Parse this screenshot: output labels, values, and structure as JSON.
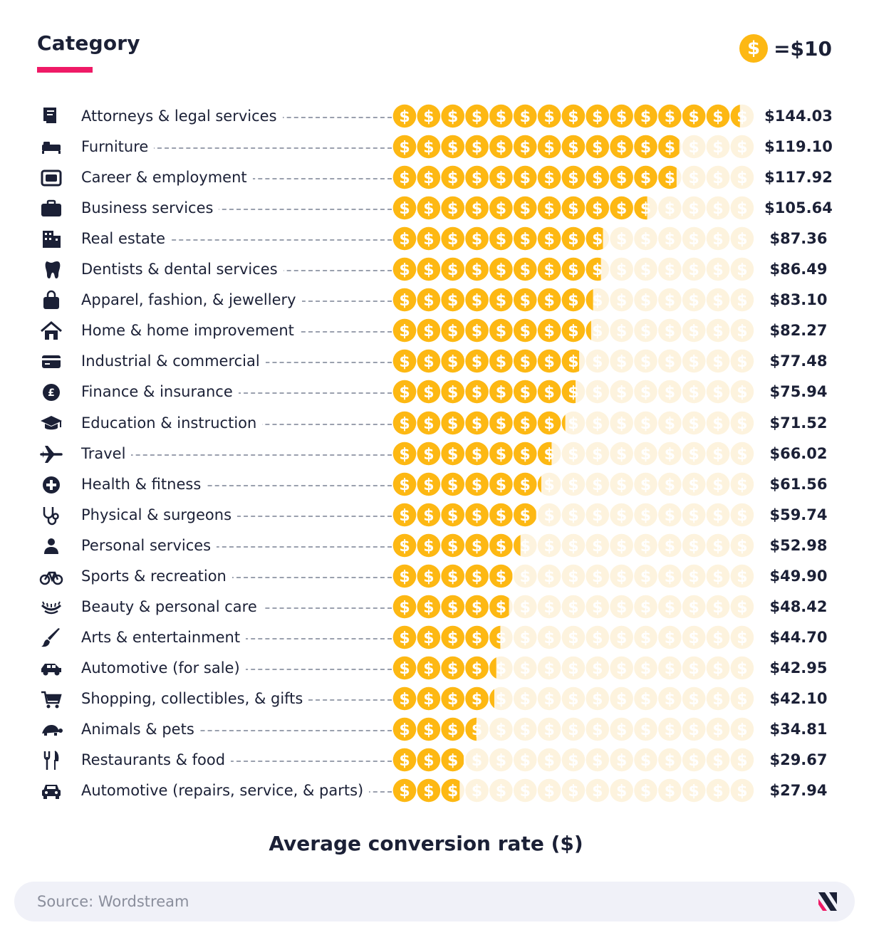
{
  "header": {
    "title": "Category"
  },
  "legend": {
    "coin_symbol": "$",
    "value_label": "=$10"
  },
  "chart_data": {
    "type": "bar",
    "encoding": "pictogram",
    "unit_value": 10,
    "coins_per_row": 15,
    "title": "",
    "ylabel": "Category",
    "xlabel": "Average conversion rate ($)",
    "coin_color": "#fdb813",
    "coin_empty_color": "#fdf3de",
    "categories": [
      {
        "label": "Attorneys & legal services",
        "value": 144.03,
        "value_label": "$144.03",
        "icon": "scroll-icon"
      },
      {
        "label": "Furniture",
        "value": 119.1,
        "value_label": "$119.10",
        "icon": "bed-icon"
      },
      {
        "label": "Career & employment",
        "value": 117.92,
        "value_label": "$117.92",
        "icon": "id-card-icon"
      },
      {
        "label": "Business services",
        "value": 105.64,
        "value_label": "$105.64",
        "icon": "briefcase-icon"
      },
      {
        "label": "Real estate",
        "value": 87.36,
        "value_label": "$87.36",
        "icon": "building-icon"
      },
      {
        "label": "Dentists & dental services",
        "value": 86.49,
        "value_label": "$86.49",
        "icon": "tooth-icon"
      },
      {
        "label": "Apparel, fashion, & jewellery",
        "value": 83.1,
        "value_label": "$83.10",
        "icon": "shopping-bag-icon"
      },
      {
        "label": "Home & home improvement",
        "value": 82.27,
        "value_label": "$82.27",
        "icon": "house-icon"
      },
      {
        "label": "Industrial & commercial",
        "value": 77.48,
        "value_label": "$77.48",
        "icon": "credit-card-icon"
      },
      {
        "label": "Finance & insurance",
        "value": 75.94,
        "value_label": "$75.94",
        "icon": "pound-coin-icon"
      },
      {
        "label": "Education & instruction",
        "value": 71.52,
        "value_label": "$71.52",
        "icon": "graduation-cap-icon"
      },
      {
        "label": "Travel",
        "value": 66.02,
        "value_label": "$66.02",
        "icon": "airplane-icon"
      },
      {
        "label": "Health & fitness",
        "value": 61.56,
        "value_label": "$61.56",
        "icon": "plus-circle-icon"
      },
      {
        "label": "Physical & surgeons",
        "value": 59.74,
        "value_label": "$59.74",
        "icon": "stethoscope-icon"
      },
      {
        "label": "Personal services",
        "value": 52.98,
        "value_label": "$52.98",
        "icon": "person-icon"
      },
      {
        "label": "Sports & recreation",
        "value": 49.9,
        "value_label": "$49.90",
        "icon": "bicycle-icon"
      },
      {
        "label": "Beauty & personal care",
        "value": 48.42,
        "value_label": "$48.42",
        "icon": "eyelash-icon"
      },
      {
        "label": "Arts & entertainment",
        "value": 44.7,
        "value_label": "$44.70",
        "icon": "paintbrush-icon"
      },
      {
        "label": "Automotive (for sale)",
        "value": 42.95,
        "value_label": "$42.95",
        "icon": "car-side-icon"
      },
      {
        "label": "Shopping, collectibles, & gifts",
        "value": 42.1,
        "value_label": "$42.10",
        "icon": "shopping-cart-icon"
      },
      {
        "label": "Animals & pets",
        "value": 34.81,
        "value_label": "$34.81",
        "icon": "turtle-icon"
      },
      {
        "label": "Restaurants & food",
        "value": 29.67,
        "value_label": "$29.67",
        "icon": "fork-knife-icon"
      },
      {
        "label": "Automotive (repairs, service, & parts)",
        "value": 27.94,
        "value_label": "$27.94",
        "icon": "car-front-icon"
      }
    ]
  },
  "footer": {
    "source": "Source: Wordstream",
    "logo_icon": "brand-logo-icon"
  },
  "colors": {
    "accent": "#ef1a66",
    "text": "#1b2036",
    "muted": "#8a8e9c",
    "footer_bg": "#f0f1f8"
  }
}
